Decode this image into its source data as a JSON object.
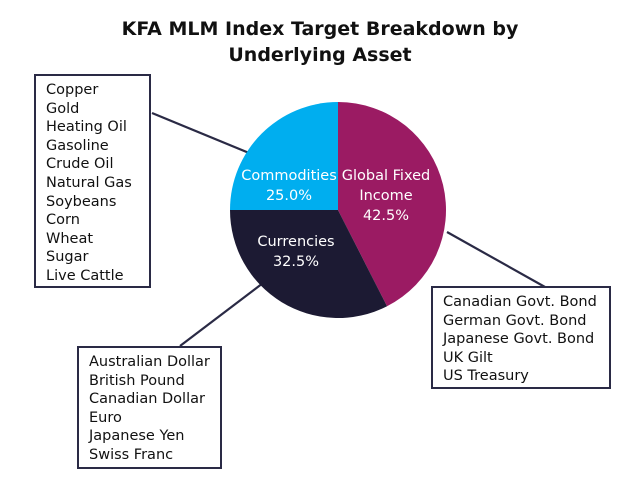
{
  "chart_data": {
    "type": "pie",
    "title": "KFA MLM Index Target Breakdown by Underlying Asset",
    "title_lines": [
      "KFA MLM Index Target Breakdown by",
      "Underlying Asset"
    ],
    "slices": [
      {
        "key": "commodities",
        "label_lines": [
          "Commodities",
          "25.0%"
        ],
        "value": 25.0,
        "color": "#00aeef"
      },
      {
        "key": "fixed_income",
        "label_lines": [
          "Global Fixed",
          "Income",
          "42.5%"
        ],
        "value": 42.5,
        "color": "#9b1b63"
      },
      {
        "key": "currencies",
        "label_lines": [
          "Currencies",
          "32.5%"
        ],
        "value": 32.5,
        "color": "#1c1a33"
      }
    ],
    "callouts": {
      "commodities": [
        "Copper",
        "Gold",
        "Heating Oil",
        "Gasoline",
        "Crude Oil",
        "Natural Gas",
        "Soybeans",
        "Corn",
        "Wheat",
        "Sugar",
        "Live Cattle"
      ],
      "fixed_income": [
        "Canadian Govt. Bond",
        "German Govt. Bond",
        "Japanese Govt. Bond",
        "UK Gilt",
        "US Treasury"
      ],
      "currencies": [
        "Australian Dollar",
        "British Pound",
        "Canadian Dollar",
        "Euro",
        "Japanese Yen",
        "Swiss Franc"
      ]
    },
    "slice_label_color": "#ffffff",
    "connector_color": "#2a2a45"
  }
}
